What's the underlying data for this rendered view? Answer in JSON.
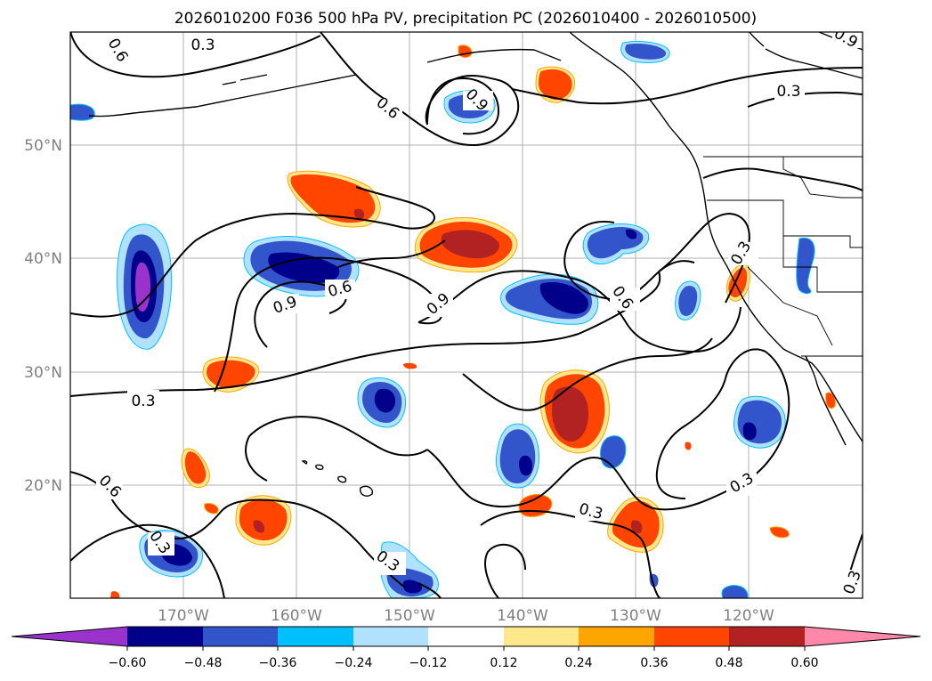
{
  "title": "2026010200 F036 500 hPa PV, precipitation PC (2026010400 - 2026010500)",
  "map": {
    "projection": "PlateCarree",
    "extent": {
      "lon_west": -180,
      "lon_east": -110,
      "lat_south": 10,
      "lat_north": 60
    },
    "latitude_labels": [
      "50°N",
      "40°N",
      "30°N",
      "20°N"
    ],
    "longitude_labels": [
      "170°W",
      "160°W",
      "150°W",
      "140°W",
      "130°W",
      "120°W"
    ],
    "contour_labels": [
      "0.3",
      "0.6",
      "0.3",
      "0.6",
      "0.9",
      "0.9",
      "0.3",
      "0.9",
      "0.6",
      "0.9",
      "0.6",
      "0.3",
      "0.3",
      "0.6",
      "0.3",
      "0.3",
      "0.3",
      "0.3",
      "0.3"
    ],
    "contour_levels": [
      0.3,
      0.6,
      0.9
    ]
  },
  "colorbar": {
    "tick_labels": [
      "−0.60",
      "−0.48",
      "−0.36",
      "−0.24",
      "−0.12",
      "0.12",
      "0.24",
      "0.36",
      "0.48",
      "0.60"
    ],
    "colors": [
      "#9933cc",
      "#00008b",
      "#3355cc",
      "#00bfff",
      "#b0e2ff",
      "#ffffff",
      "#ffe88c",
      "#ffa500",
      "#ff4500",
      "#b22222",
      "#ff88aa"
    ]
  },
  "colors": {
    "neg_light": "#b0e2ff",
    "neg_cyan": "#00bfff",
    "neg_mid": "#3355cc",
    "neg_dark": "#00008b",
    "neg_purple": "#9933cc",
    "pos_yellow": "#ffe88c",
    "pos_orange": "#ffa500",
    "pos_red": "#ff4500",
    "pos_dark": "#b22222",
    "pos_pink": "#ff88aa"
  }
}
